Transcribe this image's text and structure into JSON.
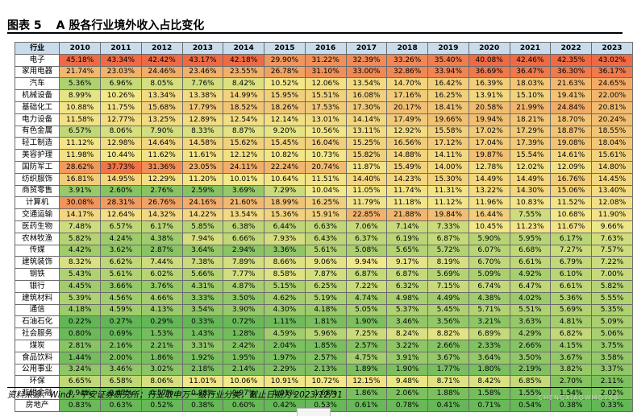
{
  "title": {
    "number": "图表 5",
    "text": "A 股各行业境外收入占比变化"
  },
  "table": {
    "header_label": "行业",
    "years": [
      "2010",
      "2011",
      "2012",
      "2013",
      "2014",
      "2015",
      "2016",
      "2017",
      "2018",
      "2019",
      "2020",
      "2021",
      "2022",
      "2023"
    ],
    "rows": [
      {
        "industry": "电子",
        "values": [
          "45.18%",
          "43.34%",
          "42.42%",
          "43.17%",
          "42.18%",
          "29.90%",
          "31.22%",
          "32.39%",
          "33.26%",
          "35.40%",
          "40.08%",
          "42.46%",
          "42.35%",
          "43.02%"
        ]
      },
      {
        "industry": "家用电器",
        "values": [
          "21.74%",
          "23.03%",
          "24.46%",
          "23.46%",
          "23.55%",
          "26.78%",
          "31.10%",
          "33.00%",
          "32.86%",
          "33.94%",
          "36.69%",
          "36.47%",
          "36.30%",
          "36.17%"
        ]
      },
      {
        "industry": "汽车",
        "values": [
          "5.36%",
          "6.96%",
          "8.05%",
          "7.76%",
          "8.42%",
          "10.52%",
          "12.06%",
          "13.54%",
          "14.70%",
          "16.42%",
          "16.39%",
          "18.03%",
          "21.63%",
          "24.65%"
        ]
      },
      {
        "industry": "机械设备",
        "values": [
          "8.99%",
          "10.26%",
          "13.34%",
          "13.38%",
          "14.99%",
          "15.95%",
          "15.51%",
          "16.08%",
          "17.16%",
          "16.25%",
          "13.91%",
          "15.10%",
          "19.41%",
          "22.00%"
        ]
      },
      {
        "industry": "基础化工",
        "values": [
          "10.88%",
          "11.75%",
          "15.68%",
          "17.79%",
          "18.52%",
          "18.26%",
          "17.53%",
          "17.30%",
          "20.17%",
          "18.41%",
          "20.58%",
          "21.99%",
          "24.84%",
          "20.81%"
        ]
      },
      {
        "industry": "电力设备",
        "values": [
          "11.58%",
          "12.77%",
          "13.25%",
          "12.89%",
          "12.54%",
          "12.14%",
          "13.01%",
          "14.14%",
          "17.49%",
          "19.66%",
          "19.94%",
          "18.21%",
          "18.70%",
          "20.24%"
        ]
      },
      {
        "industry": "有色金属",
        "values": [
          "6.57%",
          "8.06%",
          "7.90%",
          "8.33%",
          "8.87%",
          "9.20%",
          "10.56%",
          "13.11%",
          "12.92%",
          "15.58%",
          "17.02%",
          "17.29%",
          "18.87%",
          "18.55%"
        ]
      },
      {
        "industry": "轻工制造",
        "values": [
          "11.12%",
          "12.98%",
          "14.64%",
          "14.58%",
          "15.62%",
          "15.45%",
          "16.04%",
          "15.25%",
          "16.56%",
          "17.12%",
          "17.04%",
          "17.39%",
          "19.08%",
          "18.04%"
        ]
      },
      {
        "industry": "美容护理",
        "values": [
          "11.98%",
          "10.44%",
          "11.62%",
          "11.61%",
          "12.12%",
          "10.82%",
          "10.73%",
          "15.82%",
          "14.88%",
          "14.11%",
          "19.87%",
          "15.54%",
          "14.61%",
          "15.61%"
        ]
      },
      {
        "industry": "国防军工",
        "values": [
          "28.62%",
          "37.73%",
          "31.36%",
          "23.05%",
          "24.11%",
          "22.24%",
          "20.74%",
          "11.87%",
          "15.49%",
          "14.00%",
          "12.78%",
          "12.02%",
          "12.09%",
          "14.80%"
        ]
      },
      {
        "industry": "纺织服饰",
        "values": [
          "16.81%",
          "14.95%",
          "12.29%",
          "11.20%",
          "10.01%",
          "10.64%",
          "11.51%",
          "14.40%",
          "14.23%",
          "15.30%",
          "14.49%",
          "14.49%",
          "16.76%",
          "14.45%"
        ]
      },
      {
        "industry": "商贸零售",
        "values": [
          "3.91%",
          "2.60%",
          "2.76%",
          "2.59%",
          "3.69%",
          "7.29%",
          "10.04%",
          "11.05%",
          "11.74%",
          "11.31%",
          "13.22%",
          "14.30%",
          "15.06%",
          "13.40%"
        ]
      },
      {
        "industry": "计算机",
        "values": [
          "30.08%",
          "28.31%",
          "26.76%",
          "24.16%",
          "21.60%",
          "18.99%",
          "16.25%",
          "11.79%",
          "11.18%",
          "11.12%",
          "11.96%",
          "10.83%",
          "11.52%",
          "12.08%"
        ]
      },
      {
        "industry": "交通运输",
        "values": [
          "14.17%",
          "12.64%",
          "14.32%",
          "14.22%",
          "13.54%",
          "15.36%",
          "15.91%",
          "22.85%",
          "21.88%",
          "19.84%",
          "16.44%",
          "7.55%",
          "10.68%",
          "11.90%"
        ]
      },
      {
        "industry": "医药生物",
        "values": [
          "7.48%",
          "6.57%",
          "6.17%",
          "5.85%",
          "6.38%",
          "6.44%",
          "6.63%",
          "7.06%",
          "7.14%",
          "7.33%",
          "10.45%",
          "11.23%",
          "11.67%",
          "9.66%"
        ]
      },
      {
        "industry": "农林牧渔",
        "values": [
          "5.82%",
          "4.24%",
          "4.38%",
          "7.94%",
          "6.66%",
          "7.93%",
          "6.43%",
          "6.37%",
          "6.19%",
          "6.87%",
          "5.90%",
          "5.95%",
          "6.17%",
          "7.63%"
        ]
      },
      {
        "industry": "传媒",
        "values": [
          "4.42%",
          "3.62%",
          "2.87%",
          "3.64%",
          "2.94%",
          "3.36%",
          "5.61%",
          "5.08%",
          "5.65%",
          "5.72%",
          "6.07%",
          "6.68%",
          "7.27%",
          "7.57%"
        ]
      },
      {
        "industry": "建筑装饰",
        "values": [
          "8.32%",
          "6.62%",
          "7.44%",
          "7.38%",
          "7.89%",
          "8.66%",
          "9.06%",
          "9.94%",
          "9.17%",
          "8.19%",
          "6.70%",
          "6.61%",
          "6.79%",
          "7.22%"
        ]
      },
      {
        "industry": "钢铁",
        "values": [
          "5.43%",
          "5.61%",
          "6.02%",
          "5.66%",
          "7.77%",
          "8.58%",
          "7.87%",
          "6.87%",
          "6.87%",
          "5.69%",
          "5.09%",
          "4.92%",
          "6.10%",
          "7.00%"
        ]
      },
      {
        "industry": "银行",
        "values": [
          "4.45%",
          "3.66%",
          "3.76%",
          "4.31%",
          "4.87%",
          "5.15%",
          "6.25%",
          "7.22%",
          "6.32%",
          "7.15%",
          "6.74%",
          "6.47%",
          "6.61%",
          "5.82%"
        ]
      },
      {
        "industry": "建筑材料",
        "values": [
          "5.39%",
          "4.56%",
          "4.66%",
          "3.33%",
          "3.50%",
          "4.62%",
          "5.19%",
          "4.74%",
          "4.98%",
          "4.49%",
          "4.38%",
          "4.02%",
          "5.36%",
          "5.55%"
        ]
      },
      {
        "industry": "通信",
        "values": [
          "4.18%",
          "4.59%",
          "4.13%",
          "3.54%",
          "3.90%",
          "4.30%",
          "4.18%",
          "5.05%",
          "5.37%",
          "5.45%",
          "5.71%",
          "5.51%",
          "5.69%",
          "5.35%"
        ]
      },
      {
        "industry": "石油石化",
        "values": [
          "0.22%",
          "0.27%",
          "0.29%",
          "0.33%",
          "0.72%",
          "1.11%",
          "1.81%",
          "1.90%",
          "3.46%",
          "3.56%",
          "3.21%",
          "3.63%",
          "4.81%",
          "5.09%"
        ]
      },
      {
        "industry": "社会服务",
        "values": [
          "0.80%",
          "0.69%",
          "1.53%",
          "1.43%",
          "1.28%",
          "4.59%",
          "5.96%",
          "7.25%",
          "8.24%",
          "8.82%",
          "6.89%",
          "4.29%",
          "6.82%",
          "5.06%"
        ]
      },
      {
        "industry": "煤炭",
        "values": [
          "2.81%",
          "2.16%",
          "2.21%",
          "3.31%",
          "2.42%",
          "2.04%",
          "1.85%",
          "2.57%",
          "3.22%",
          "2.66%",
          "2.33%",
          "2.66%",
          "4.15%",
          "3.75%"
        ]
      },
      {
        "industry": "食品饮料",
        "values": [
          "1.44%",
          "2.00%",
          "1.86%",
          "1.92%",
          "1.95%",
          "1.97%",
          "2.57%",
          "4.75%",
          "3.91%",
          "3.67%",
          "3.64%",
          "3.50%",
          "3.67%",
          "3.58%"
        ]
      },
      {
        "industry": "公用事业",
        "values": [
          "3.24%",
          "3.46%",
          "3.02%",
          "2.18%",
          "2.14%",
          "2.29%",
          "2.13%",
          "1.89%",
          "1.90%",
          "1.77%",
          "1.80%",
          "2.19%",
          "3.82%",
          "3.37%"
        ]
      },
      {
        "industry": "环保",
        "values": [
          "6.65%",
          "6.58%",
          "8.06%",
          "11.01%",
          "10.06%",
          "10.91%",
          "10.72%",
          "12.15%",
          "9.48%",
          "8.71%",
          "8.42%",
          "6.85%",
          "2.70%",
          "2.11%"
        ]
      },
      {
        "industry": "非银金融",
        "values": [
          "0.94%",
          "0.67%",
          "0.57%",
          "0.88%",
          "0.97%",
          "1.01%",
          "1.68%",
          "1.86%",
          "2.06%",
          "1.88%",
          "1.58%",
          "1.55%",
          "1.54%",
          "2.02%"
        ]
      },
      {
        "industry": "房地产",
        "values": [
          "0.83%",
          "0.63%",
          "0.52%",
          "0.38%",
          "0.60%",
          "0.42%",
          "0.53%",
          "0.61%",
          "0.78%",
          "0.41%",
          "0.71%",
          "0.54%",
          "0.38%",
          "0.33%"
        ]
      }
    ]
  },
  "source": "资料来源：Wind，平安证券研究所；行业取申万一级行业分类，截止日期为 2023/12/31",
  "watermark": "CHENGXIAOWMO700",
  "colors": {
    "header_bg": "#c8dcec",
    "low": "#5fb555",
    "mid": "#f2e98a",
    "high": "#ef6a44"
  }
}
